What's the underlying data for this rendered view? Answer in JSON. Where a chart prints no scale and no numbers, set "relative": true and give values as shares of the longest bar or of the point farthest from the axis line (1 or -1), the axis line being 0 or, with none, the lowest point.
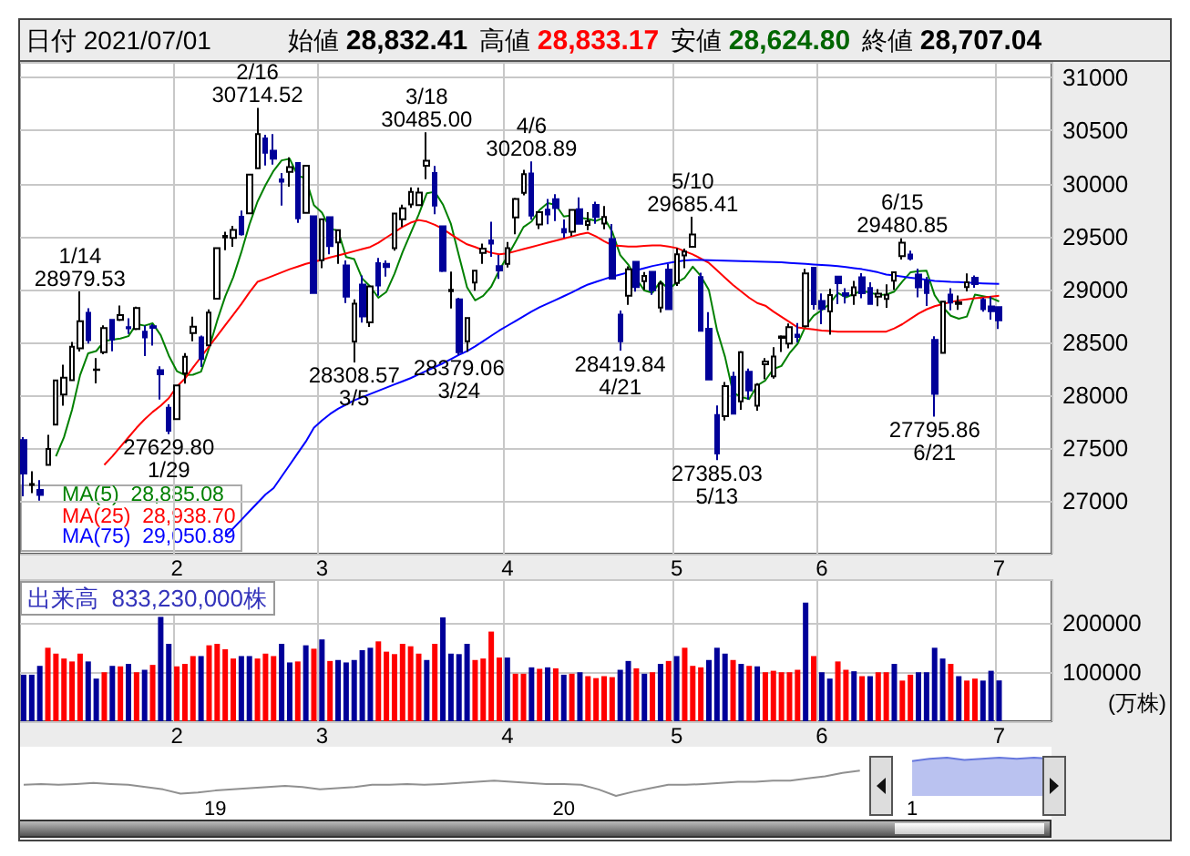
{
  "chart_data": [
    {
      "type": "candlestick",
      "title": "日付 2021/07/01",
      "legend": "bottom left",
      "grid": true,
      "categories": [
        null,
        null,
        null,
        null,
        null,
        null,
        null,
        null,
        null,
        null,
        null,
        null,
        null,
        null,
        null,
        null,
        null,
        null,
        null,
        "2",
        null,
        null,
        null,
        null,
        null,
        null,
        null,
        null,
        null,
        null,
        null,
        null,
        null,
        null,
        null,
        null,
        null,
        "3",
        null,
        null,
        null,
        null,
        null,
        null,
        null,
        null,
        null,
        null,
        null,
        null,
        null,
        null,
        null,
        null,
        null,
        null,
        null,
        null,
        null,
        null,
        "4",
        null,
        null,
        null,
        null,
        null,
        null,
        null,
        null,
        null,
        null,
        null,
        null,
        null,
        null,
        null,
        null,
        null,
        null,
        null,
        null,
        "5",
        null,
        null,
        null,
        null,
        null,
        null,
        null,
        null,
        null,
        null,
        null,
        null,
        null,
        null,
        null,
        null,
        null,
        "6",
        null,
        null,
        null,
        null,
        null,
        null,
        null,
        null,
        null,
        null,
        null,
        null,
        null,
        null,
        null,
        null,
        null,
        null,
        null,
        null,
        null,
        "7"
      ],
      "ylim": [
        26500,
        31150
      ],
      "yticks": [
        27000,
        27500,
        28000,
        28500,
        29000,
        29500,
        30000,
        30500,
        31000
      ],
      "series": [
        {
          "type": "candlestick",
          "colors": [
            "#000099",
            "#ffffff",
            "#000099",
            "#ffffff",
            "#ffffff",
            "#ffffff",
            "#ffffff",
            "#ffffff",
            "#000099",
            "#ffffff",
            "#ffffff",
            "#000099",
            "#ffffff",
            "#000099",
            "#ffffff",
            "#000099",
            "#000099",
            "#000099",
            "#000099",
            "#ffffff",
            "#ffffff",
            "#ffffff",
            "#000099",
            "#ffffff",
            "#ffffff",
            "#ffffff",
            "#ffffff",
            "#000099",
            "#ffffff",
            "#ffffff",
            "#000099",
            "#000099",
            "#000099",
            "#ffffff",
            "#000099",
            "#ffffff",
            "#000099",
            "#ffffff",
            "#000099",
            "#ffffff",
            "#000099",
            "#ffffff",
            "#000099",
            "#ffffff",
            "#000099",
            "#000099",
            "#ffffff",
            "#ffffff",
            "#ffffff",
            "#ffffff",
            "#ffffff",
            "#000099",
            "#000099",
            "#ffffff",
            "#000099",
            "#ffffff",
            "#ffffff",
            "#ffffff",
            "#000099",
            "#000099",
            "#ffffff",
            "#ffffff",
            "#ffffff",
            "#000099",
            "#ffffff",
            "#000099",
            "#000099",
            "#000099",
            "#ffffff",
            "#000099",
            "#ffffff",
            "#000099",
            "#ffffff",
            "#000099",
            "#000099",
            "#ffffff",
            "#000099",
            "#ffffff",
            "#000099",
            "#ffffff",
            "#000099",
            "#ffffff",
            "#ffffff",
            "#ffffff",
            "#000099",
            "#000099",
            "#000099",
            "#ffffff",
            "#000099",
            "#ffffff",
            "#000099",
            "#ffffff",
            "#ffffff",
            "#ffffff",
            "#ffffff",
            "#ffffff",
            "#000099",
            "#ffffff",
            "#000099",
            "#000099",
            "#ffffff",
            "#000099",
            "#000099",
            "#ffffff",
            "#000099",
            "#000099",
            "#ffffff",
            "#ffffff",
            "#ffffff",
            "#ffffff",
            "#000099",
            "#000099",
            "#000099",
            "#000099",
            "#ffffff",
            "#000099",
            "#ffffff",
            "#ffffff",
            "#000099",
            "#000099",
            "#000099",
            "#000099"
          ],
          "ohlc": [
            [
              27575,
              27602,
              27042,
              27258
            ],
            [
              27151,
              27279,
              27073,
              27158
            ],
            [
              27102,
              27196,
              27002,
              27056
            ],
            [
              27340,
              27624,
              27340,
              27490
            ],
            [
              27720,
              28139,
              27720,
              28139
            ],
            [
              28004,
              28287,
              27899,
              28164
            ],
            [
              28140,
              28503,
              28140,
              28456
            ],
            [
              28442,
              28979.53,
              28411,
              28698
            ],
            [
              28777,
              28820,
              28487,
              28519
            ],
            [
              28238,
              28349,
              28111,
              28242
            ],
            [
              28405,
              28660,
              28385,
              28633
            ],
            [
              28710,
              28711,
              28414,
              28523
            ],
            [
              28710,
              28846,
              28700,
              28757
            ],
            [
              28641,
              28726,
              28578,
              28631
            ],
            [
              28625,
              28836,
              28613,
              28822
            ],
            [
              28600,
              28657,
              28369,
              28546
            ],
            [
              28650,
              28669,
              28467,
              28635
            ],
            [
              28236,
              28271,
              27957,
              28197
            ],
            [
              27880,
              27912,
              27629.8,
              27663
            ],
            [
              27772,
              28091,
              27771,
              28091
            ],
            [
              28205,
              28397,
              28108,
              28362
            ],
            [
              28586,
              28740,
              28509,
              28646
            ],
            [
              28545,
              28562,
              28266,
              28341
            ],
            [
              28470,
              28810,
              28470,
              28779
            ],
            [
              28911,
              29388,
              28911,
              29388
            ],
            [
              29490,
              29545,
              29369,
              29505
            ],
            [
              29485,
              29599,
              29403,
              29562
            ],
            [
              29687,
              29744,
              29508,
              29520
            ],
            [
              29718,
              30084,
              29718,
              30084
            ],
            [
              30145,
              30714.52,
              30140,
              30467
            ],
            [
              30427,
              30461,
              30171,
              30292
            ],
            [
              30311,
              30468,
              30180,
              30236
            ],
            [
              30040,
              30099,
              29791,
              30017
            ],
            [
              30110,
              30248,
              29970,
              30156
            ],
            [
              30195,
              30196,
              29629,
              29671
            ],
            [
              29723,
              30168,
              29723,
              30168
            ],
            [
              29690,
              29690,
              28966,
              28966
            ],
            [
              29275,
              29663,
              29199,
              29663
            ],
            [
              29681,
              29685,
              29330,
              29408
            ],
            [
              29443,
              29559,
              29240,
              29559
            ],
            [
              29225,
              29272,
              28870,
              28930
            ],
            [
              28506,
              28905,
              28308.57,
              28864
            ],
            [
              29045,
              29130,
              28684,
              28743
            ],
            [
              28688,
              29036,
              28644,
              29027
            ],
            [
              29248,
              29296,
              28940,
              29036
            ],
            [
              29240,
              29273,
              29120,
              29211
            ],
            [
              29390,
              29717,
              29366,
              29717
            ],
            [
              29663,
              29800,
              29589,
              29766
            ],
            [
              29803,
              29963,
              29770,
              29921
            ],
            [
              29796,
              29962,
              29796,
              29914
            ],
            [
              30169,
              30485.0,
              30041,
              30216
            ],
            [
              30099,
              30167,
              29709,
              29792
            ],
            [
              29595,
              29595,
              29163,
              29174
            ],
            [
              28982,
              29168,
              28819,
              28995
            ],
            [
              28904,
              28920,
              28379.06,
              28405
            ],
            [
              28508,
              28732,
              28410,
              28729
            ],
            [
              29064,
              29176,
              28987,
              29176
            ],
            [
              29343,
              29432,
              29240,
              29384
            ],
            [
              29462,
              29639,
              29308,
              29432
            ],
            [
              29218,
              29325,
              29099,
              29178
            ],
            [
              29241,
              29448,
              29205,
              29388
            ],
            [
              29679,
              29865,
              29520,
              29854
            ],
            [
              29912,
              30129,
              29889,
              30089
            ],
            [
              30095,
              30208.89,
              29659,
              29696
            ],
            [
              29613,
              29740,
              29570,
              29730
            ],
            [
              29753,
              29853,
              29616,
              29708
            ],
            [
              29852,
              29900,
              29645,
              29768
            ],
            [
              29570,
              29660,
              29488,
              29538
            ],
            [
              29543,
              29751,
              29505,
              29751
            ],
            [
              29758,
              29870,
              29620,
              29620
            ],
            [
              29608,
              29730,
              29560,
              29642
            ],
            [
              29799,
              29829,
              29620,
              29683
            ],
            [
              29621,
              29788,
              29568,
              29685
            ],
            [
              29476,
              29618,
              29100,
              29100
            ],
            [
              28761,
              28800,
              28419.84,
              28508
            ],
            [
              28940,
              29217,
              28853,
              29188
            ],
            [
              29260,
              29267,
              28977,
              29020
            ],
            [
              29076,
              29162,
              28996,
              29126
            ],
            [
              29165,
              29165,
              28947,
              28991
            ],
            [
              28828,
              29076,
              28780,
              29053
            ],
            [
              29186,
              29240,
              28812,
              28812
            ],
            [
              29059,
              29388,
              29031,
              29331
            ],
            [
              29320,
              29384,
              29200,
              29357
            ],
            [
              29401,
              29685.41,
              29395,
              29518
            ],
            [
              29116,
              29156,
              28608,
              28608
            ],
            [
              28627,
              28785,
              28147,
              28147
            ],
            [
              27812,
              27902,
              27385.03,
              27448
            ],
            [
              27800,
              28123,
              27760,
              28084
            ],
            [
              28172,
              28219,
              27820,
              27824
            ],
            [
              27940,
              28416,
              27860,
              28406
            ],
            [
              28220,
              28250,
              27958,
              28044
            ],
            [
              27900,
              28113,
              27853,
              28098
            ],
            [
              28291,
              28350,
              28150,
              28317
            ],
            [
              28178,
              28453,
              28156,
              28364
            ],
            [
              28541,
              28565,
              28408,
              28553
            ],
            [
              28488,
              28677,
              28442,
              28642
            ],
            [
              28570,
              28680,
              28497,
              28549
            ],
            [
              28650,
              29194,
              28645,
              29149
            ],
            [
              29204,
              29204,
              28808,
              28860
            ],
            [
              28890,
              28960,
              28671,
              28814
            ],
            [
              28790,
              29006,
              28570,
              28946
            ],
            [
              29120,
              29120,
              28860,
              29058
            ],
            [
              28962,
              29011,
              28865,
              28941
            ],
            [
              28944,
              29079,
              28852,
              29019
            ],
            [
              29113,
              29152,
              28916,
              28963
            ],
            [
              29013,
              29066,
              28852,
              28861
            ],
            [
              28930,
              29001,
              28839,
              28958
            ],
            [
              28909,
              29047,
              28826,
              28948
            ],
            [
              29082,
              29161,
              28995,
              29161
            ],
            [
              29313,
              29480.85,
              29282,
              29441
            ],
            [
              29329,
              29365,
              29273,
              29291
            ],
            [
              29140,
              29196,
              28925,
              29018
            ],
            [
              29081,
              29116,
              28842,
              28964
            ],
            [
              28522,
              28556,
              27795.86,
              28011
            ],
            [
              28398,
              28884,
              28398,
              28884
            ],
            [
              28949,
              29011,
              28801,
              28874
            ],
            [
              28861,
              28941,
              28806,
              28876
            ],
            [
              29020,
              29150,
              28981,
              29066
            ],
            [
              29110,
              29131,
              29015,
              29048
            ],
            [
              28901,
              28919,
              28789,
              28812
            ],
            [
              28837,
              28933,
              28712,
              28792
            ],
            [
              28832.41,
              28833.17,
              28624.8,
              28707.04
            ]
          ]
        },
        {
          "type": "line",
          "name": "MA(5)  28,885.08",
          "color": "#008000",
          "values": [
            null,
            null,
            null,
            null,
            27420,
            27601,
            27861,
            28189,
            28395,
            28416,
            28510,
            28523,
            28535,
            28557,
            28673,
            28656,
            28678,
            28566,
            28373,
            28226,
            28190,
            28192,
            28221,
            28444,
            28703,
            28932,
            29115,
            29351,
            29612,
            29828,
            29985,
            30120,
            30219,
            30234,
            30074,
            30050,
            29796,
            29725,
            29575,
            29553,
            29305,
            29285,
            29101,
            29025,
            28920,
            28976,
            29147,
            29351,
            29530,
            29706,
            29907,
            29922,
            29803,
            29618,
            29316,
            29019,
            28896,
            28938,
            29025,
            29180,
            29312,
            29447,
            29588,
            29641,
            29751,
            29815,
            29798,
            29688,
            29699,
            29677,
            29664,
            29647,
            29676,
            29546,
            29324,
            29233,
            29100,
            28988,
            28967,
            29076,
            29000,
            29063,
            29109,
            29214,
            29125,
            28992,
            28616,
            28361,
            28022,
            27982,
            27961,
            28091,
            28138,
            28246,
            28275,
            28395,
            28485,
            28651,
            28751,
            28803,
            28864,
            28965,
            28924,
            28956,
            28985,
            28968,
            28948,
            28950,
            28978,
            29074,
            29160,
            29172,
            29175,
            28945,
            28834,
            28750,
            28722,
            28742,
            28950,
            28935,
            28919,
            28885.08
          ]
        },
        {
          "type": "line",
          "name": "MA(25)  28,938.70",
          "color": "#ff0000",
          "values": [
            null,
            null,
            null,
            null,
            null,
            null,
            null,
            null,
            null,
            null,
            27340,
            27420,
            27510,
            27600,
            27690,
            27770,
            27840,
            27900,
            27970,
            28080,
            28155,
            28260,
            28360,
            28460,
            28560,
            28660,
            28760,
            28860,
            28970,
            29070,
            29100,
            29130,
            29160,
            29190,
            29215,
            29240,
            29260,
            29280,
            29300,
            29320,
            29340,
            29360,
            29380,
            29400,
            29440,
            29490,
            29540,
            29590,
            29630,
            29655,
            29640,
            29610,
            29570,
            29520,
            29470,
            29425,
            29400,
            29370,
            29345,
            29330,
            29340,
            29360,
            29380,
            29400,
            29420,
            29440,
            29460,
            29480,
            29500,
            29520,
            29535,
            29500,
            29455,
            29415,
            29410,
            29405,
            29405,
            29410,
            29415,
            29415,
            29405,
            29390,
            29360,
            29330,
            29290,
            29250,
            29180,
            29110,
            29040,
            28980,
            28920,
            28870,
            28845,
            28790,
            28740,
            28690,
            28640,
            28630,
            28620,
            28610,
            28605,
            28600,
            28600,
            28600,
            28600,
            28600,
            28600,
            28600,
            28630,
            28670,
            28720,
            28770,
            28810,
            28840,
            28860,
            28880,
            28895,
            28905,
            28915,
            28922,
            28930,
            28938.7
          ]
        },
        {
          "type": "line",
          "name": "MA(75)  29,050.89",
          "color": "#0000ff",
          "values": [
            null,
            null,
            null,
            null,
            null,
            null,
            null,
            null,
            null,
            null,
            null,
            null,
            null,
            null,
            null,
            null,
            null,
            null,
            null,
            null,
            null,
            null,
            null,
            null,
            null,
            26660,
            26740,
            26820,
            26900,
            26980,
            27060,
            27120,
            27230,
            27340,
            27450,
            27560,
            27690,
            27760,
            27820,
            27870,
            27910,
            27950,
            27980,
            28010,
            28040,
            28070,
            28100,
            28130,
            28160,
            28195,
            28230,
            28265,
            28300,
            28340,
            28380,
            28415,
            28460,
            28510,
            28560,
            28610,
            28655,
            28700,
            28745,
            28790,
            28830,
            28865,
            28900,
            28935,
            28970,
            29010,
            29045,
            29070,
            29095,
            29120,
            29140,
            29160,
            29180,
            29200,
            29220,
            29235,
            29250,
            29262,
            29272,
            29278,
            29278,
            29275,
            29272,
            29270,
            29268,
            29266,
            29264,
            29262,
            29260,
            29258,
            29255,
            29250,
            29245,
            29240,
            29235,
            29230,
            29225,
            29218,
            29210,
            29200,
            29190,
            29175,
            29160,
            29140,
            29130,
            29120,
            29110,
            29100,
            29090,
            29080,
            29075,
            29070,
            29068,
            29065,
            29060,
            29056,
            29053,
            29050.89
          ]
        }
      ],
      "annotations": [
        "始値 28,832.41",
        "高値 28,833.17",
        "安値 28,624.80",
        "終値 28,707.04",
        {
          "text": "1/14\n28979.53",
          "y": 28979.53
        },
        {
          "text": "27629.80\n1/29",
          "y": 27629.8
        },
        {
          "text": "2/16\n30714.52",
          "y": 30714.52
        },
        {
          "text": "28308.57\n3/5",
          "y": 28308.57
        },
        {
          "text": "3/18\n30485.00",
          "y": 30485.0
        },
        {
          "text": "28379.06\n3/24",
          "y": 28379.06
        },
        {
          "text": "4/6\n30208.89",
          "y": 30208.89
        },
        {
          "text": "28419.84\n4/21",
          "y": 28419.84
        },
        {
          "text": "5/10\n29685.41",
          "y": 29685.41
        },
        {
          "text": "27385.03\n5/13",
          "y": 27385.03
        },
        {
          "text": "6/15\n29480.85",
          "y": 29480.85
        },
        {
          "text": "27795.86\n6/21",
          "y": 27795.86
        }
      ]
    },
    {
      "type": "bar",
      "title": "出来高  833,230,000株",
      "ylabel": "(万株)",
      "grid": true,
      "categories": [
        null,
        null,
        null,
        null,
        null,
        null,
        null,
        null,
        null,
        null,
        null,
        null,
        null,
        null,
        null,
        null,
        null,
        null,
        null,
        "2",
        null,
        null,
        null,
        null,
        null,
        null,
        null,
        null,
        null,
        null,
        null,
        null,
        null,
        null,
        null,
        null,
        null,
        "3",
        null,
        null,
        null,
        null,
        null,
        null,
        null,
        null,
        null,
        null,
        null,
        null,
        null,
        null,
        null,
        null,
        null,
        null,
        null,
        null,
        null,
        null,
        "4",
        null,
        null,
        null,
        null,
        null,
        null,
        null,
        null,
        null,
        null,
        null,
        null,
        null,
        null,
        null,
        null,
        null,
        null,
        null,
        null,
        "5",
        null,
        null,
        null,
        null,
        null,
        null,
        null,
        null,
        null,
        null,
        null,
        null,
        null,
        null,
        null,
        null,
        null,
        "6",
        null,
        null,
        null,
        null,
        null,
        null,
        null,
        null,
        null,
        null,
        null,
        null,
        null,
        null,
        null,
        null,
        null,
        null,
        null,
        null,
        null,
        "7"
      ],
      "ylim": [
        0,
        290000
      ],
      "yticks": [
        100000,
        200000
      ],
      "values": [
        95000,
        95000,
        113000,
        150000,
        138000,
        128000,
        122000,
        138000,
        122000,
        87000,
        100000,
        113000,
        112000,
        117000,
        100000,
        105000,
        115000,
        213000,
        158000,
        112000,
        117000,
        133000,
        133000,
        155000,
        158000,
        147000,
        128000,
        133000,
        133000,
        128000,
        138000,
        133000,
        158000,
        120000,
        122000,
        155000,
        148000,
        167000,
        123000,
        125000,
        120000,
        125000,
        145000,
        150000,
        163000,
        142000,
        137000,
        158000,
        153000,
        138000,
        125000,
        158000,
        212000,
        138000,
        137000,
        158000,
        125000,
        128000,
        183000,
        130000,
        130000,
        97000,
        97000,
        110000,
        107000,
        110000,
        108000,
        95000,
        97000,
        100000,
        92000,
        88000,
        92000,
        90000,
        105000,
        123000,
        108000,
        97000,
        100000,
        117000,
        123000,
        133000,
        150000,
        113000,
        110000,
        125000,
        150000,
        138000,
        125000,
        117000,
        113000,
        112000,
        100000,
        103000,
        100000,
        100000,
        105000,
        242000,
        133000,
        100000,
        87000,
        122000,
        105000,
        102000,
        92000,
        92000,
        100000,
        100000,
        117000,
        83000,
        95000,
        100000,
        100000,
        150000,
        128000,
        117000,
        92000,
        83000,
        87000,
        83000,
        103000,
        83323
      ],
      "colors": [
        "#000099",
        "#000099",
        "#000099",
        "#ff0000",
        "#ff0000",
        "#ff0000",
        "#ff0000",
        "#ff0000",
        "#000099",
        "#000099",
        "#ff0000",
        "#000099",
        "#ff0000",
        "#000099",
        "#ff0000",
        "#000099",
        "#ff0000",
        "#000099",
        "#000099",
        "#ff0000",
        "#ff0000",
        "#ff0000",
        "#000099",
        "#ff0000",
        "#ff0000",
        "#ff0000",
        "#ff0000",
        "#000099",
        "#000099",
        "#ff0000",
        "#ff0000",
        "#ff0000",
        "#000099",
        "#000099",
        "#ff0000",
        "#000099",
        "#ff0000",
        "#000099",
        "#ff0000",
        "#000099",
        "#000099",
        "#000099",
        "#000099",
        "#000099",
        "#ff0000",
        "#ff0000",
        "#ff0000",
        "#ff0000",
        "#ff0000",
        "#ff0000",
        "#000099",
        "#ff0000",
        "#000099",
        "#000099",
        "#000099",
        "#000099",
        "#ff0000",
        "#ff0000",
        "#ff0000",
        "#ff0000",
        "#000099",
        "#ff0000",
        "#ff0000",
        "#000099",
        "#ff0000",
        "#000099",
        "#ff0000",
        "#000099",
        "#ff0000",
        "#000099",
        "#ff0000",
        "#ff0000",
        "#ff0000",
        "#ff0000",
        "#000099",
        "#000099",
        "#ff0000",
        "#000099",
        "#ff0000",
        "#000099",
        "#ff0000",
        "#000099",
        "#ff0000",
        "#ff0000",
        "#ff0000",
        "#000099",
        "#000099",
        "#000099",
        "#ff0000",
        "#000099",
        "#ff0000",
        "#000099",
        "#ff0000",
        "#ff0000",
        "#ff0000",
        "#ff0000",
        "#ff0000",
        "#000099",
        "#ff0000",
        "#000099",
        "#000099",
        "#ff0000",
        "#ff0000",
        "#000099",
        "#ff0000",
        "#000099",
        "#ff0000",
        "#ff0000",
        "#000099",
        "#ff0000",
        "#ff0000",
        "#000099",
        "#000099",
        "#000099",
        "#000099",
        "#ff0000",
        "#000099",
        "#ff0000",
        "#ff0000",
        "#000099",
        "#000099",
        "#000099"
      ]
    },
    {
      "type": "line",
      "relative": true,
      "tick_labels": "x",
      "categories": [
        null,
        null,
        null,
        null,
        null,
        null,
        null,
        null,
        null,
        null,
        null,
        "19",
        null,
        null,
        null,
        null,
        null,
        null,
        null,
        null,
        null,
        null,
        null,
        null,
        null,
        null,
        null,
        null,
        null,
        null,
        null,
        "20",
        null,
        null,
        null,
        null,
        null,
        null,
        null,
        null,
        null,
        null,
        null,
        null,
        null,
        null,
        null,
        null,
        null,
        null,
        null,
        "1",
        null,
        null,
        null,
        null,
        null,
        null,
        null,
        null
      ],
      "series": [
        {
          "color": "#909090",
          "values": [
            0.29,
            0.31,
            0.29,
            0.31,
            0.34,
            0.31,
            0.29,
            0.23,
            0.17,
            0.06,
            0.09,
            0.14,
            0.17,
            0.2,
            0.23,
            0.26,
            0.23,
            0.17,
            0.2,
            0.23,
            0.29,
            0.29,
            0.31,
            0.29,
            0.31,
            0.34,
            0.37,
            0.4,
            0.37,
            0.34,
            0.31,
            0.31,
            0.29,
            0.17,
            0,
            0.11,
            0.2,
            0.29,
            0.29,
            0.31,
            0.34,
            0.37,
            0.37,
            0.4,
            0.4,
            0.46,
            0.51,
            0.6,
            0.66,
            null,
            null,
            null,
            null,
            null,
            null,
            null,
            null,
            null,
            null,
            null
          ]
        },
        {
          "type": "area",
          "color": "#6677dd",
          "values": [
            null,
            null,
            null,
            null,
            null,
            null,
            null,
            null,
            null,
            null,
            null,
            null,
            null,
            null,
            null,
            null,
            null,
            null,
            null,
            null,
            null,
            null,
            null,
            null,
            null,
            null,
            null,
            null,
            null,
            null,
            null,
            null,
            null,
            null,
            null,
            null,
            null,
            null,
            null,
            null,
            null,
            null,
            null,
            null,
            null,
            null,
            null,
            null,
            null,
            null,
            null,
            0.91,
            0.97,
            1,
            0.94,
            0.97,
            1,
            0.97,
            1,
            0.97
          ]
        }
      ]
    }
  ]
}
